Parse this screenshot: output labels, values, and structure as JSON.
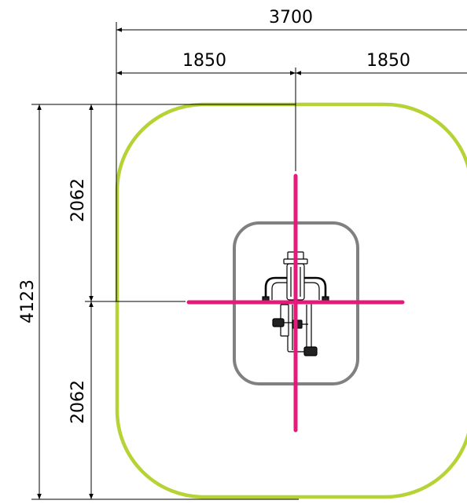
{
  "dimensions": {
    "total_width": "3700",
    "half_width_left": "1850",
    "half_width_right": "1850",
    "total_depth": "4123",
    "half_depth_top": "2062",
    "half_depth_bottom": "2062"
  },
  "colors": {
    "safety_zone": "#b5d334",
    "equipment_zone": "#808080",
    "axis": "#e5197a",
    "line": "#000000"
  }
}
